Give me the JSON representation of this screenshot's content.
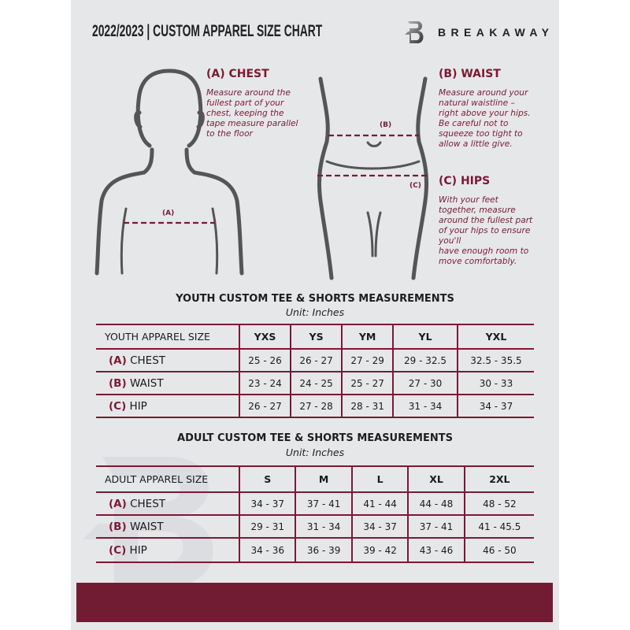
{
  "header": {
    "title": "2022/2023  |  CUSTOM APPAREL SIZE CHART",
    "brand_name": "BREAKAWAY",
    "logo_letter": "B"
  },
  "measures": {
    "chest": {
      "heading": "(A) CHEST",
      "marker": "(A)",
      "text": "Measure around the\nfullest part of your\nchest, keeping the\ntape measure parallel\nto the floor"
    },
    "waist": {
      "heading": "(B) WAIST",
      "marker": "(B)",
      "text": "Measure around your\nnatural waistline –\nright above your hips.\nBe careful not to\nsqueeze too tight to\nallow a little give."
    },
    "hips": {
      "heading": "(C) HIPS",
      "marker": "(C)",
      "text": "With your feet\ntogether, measure\naround the fullest part\nof your hips to ensure\nyou'll\nhave enough room to\nmove comfortably."
    }
  },
  "youth": {
    "title": "YOUTH CUSTOM TEE & SHORTS MEASUREMENTS",
    "unit": "Unit: Inches",
    "size_label": "YOUTH APPAREL SIZE",
    "sizes": [
      "YXS",
      "YS",
      "YM",
      "YL",
      "YXL"
    ],
    "rows": [
      {
        "code": "(A)",
        "name": "CHEST",
        "values": [
          "25 - 26",
          "26 - 27",
          "27 - 29",
          "29 - 32.5",
          "32.5 - 35.5"
        ]
      },
      {
        "code": "(B)",
        "name": "WAIST",
        "values": [
          "23 - 24",
          "24 - 25",
          "25 - 27",
          "27 - 30",
          "30 - 33"
        ]
      },
      {
        "code": "(C)",
        "name": "HIP",
        "values": [
          "26 - 27",
          "27 - 28",
          "28 - 31",
          "31 - 34",
          "34 - 37"
        ]
      }
    ]
  },
  "adult": {
    "title": "ADULT CUSTOM TEE & SHORTS MEASUREMENTS",
    "unit": "Unit: Inches",
    "size_label": "ADULT APPAREL SIZE",
    "sizes": [
      "S",
      "M",
      "L",
      "XL",
      "2XL"
    ],
    "rows": [
      {
        "code": "(A)",
        "name": "CHEST",
        "values": [
          "34 - 37",
          "37 - 41",
          "41 - 44",
          "44 - 48",
          "48 - 52"
        ]
      },
      {
        "code": "(B)",
        "name": "WAIST",
        "values": [
          "29 - 31",
          "31 - 34",
          "34 - 37",
          "37 - 41",
          "41 - 45.5"
        ]
      },
      {
        "code": "(C)",
        "name": "HIP",
        "values": [
          "34 - 36",
          "36 - 39",
          "39 - 42",
          "43 - 46",
          "46 - 50"
        ]
      }
    ]
  },
  "colors": {
    "accent": "#721c33",
    "panel": "#e6e7e9",
    "text": "#1e1e1e"
  }
}
